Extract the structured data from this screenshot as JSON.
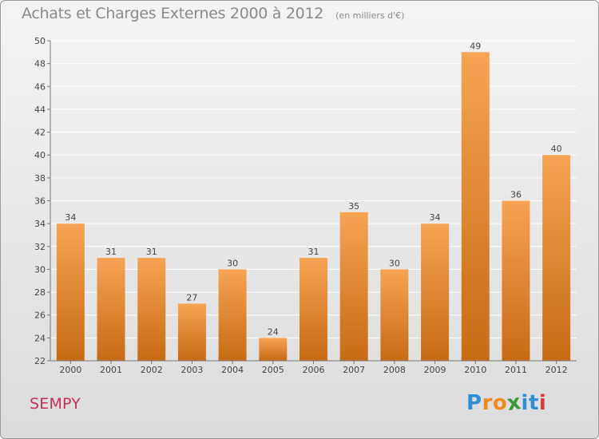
{
  "header": {
    "title": "Achats et Charges Externes 2000 à 2012",
    "unit": "(en milliers d'€)"
  },
  "footer": {
    "town": "SEMPY",
    "logo": {
      "letters": [
        "P",
        "r",
        "o",
        "x",
        "i",
        "t",
        "i"
      ],
      "colors": [
        "#2f8fd4",
        "#f08a1c",
        "#f08a1c",
        "#3a9a3a",
        "#2f8fd4",
        "#2f8fd4",
        "#d93a3a"
      ]
    }
  },
  "colors": {
    "bar_top": "#f6a454",
    "bar_bottom": "#c76a14",
    "grid": "#ffffff",
    "axis_text": "#444444",
    "label_text": "#444444"
  },
  "chart_data": {
    "type": "bar",
    "categories": [
      "2000",
      "2001",
      "2002",
      "2003",
      "2004",
      "2005",
      "2006",
      "2007",
      "2008",
      "2009",
      "2010",
      "2011",
      "2012"
    ],
    "values": [
      34,
      31,
      31,
      27,
      30,
      24,
      31,
      35,
      30,
      34,
      49,
      36,
      40
    ],
    "ylim": [
      22,
      50
    ],
    "yticks": [
      22,
      24,
      26,
      28,
      30,
      32,
      34,
      36,
      38,
      40,
      42,
      44,
      46,
      48,
      50
    ],
    "grid": true,
    "data_labels": true
  }
}
